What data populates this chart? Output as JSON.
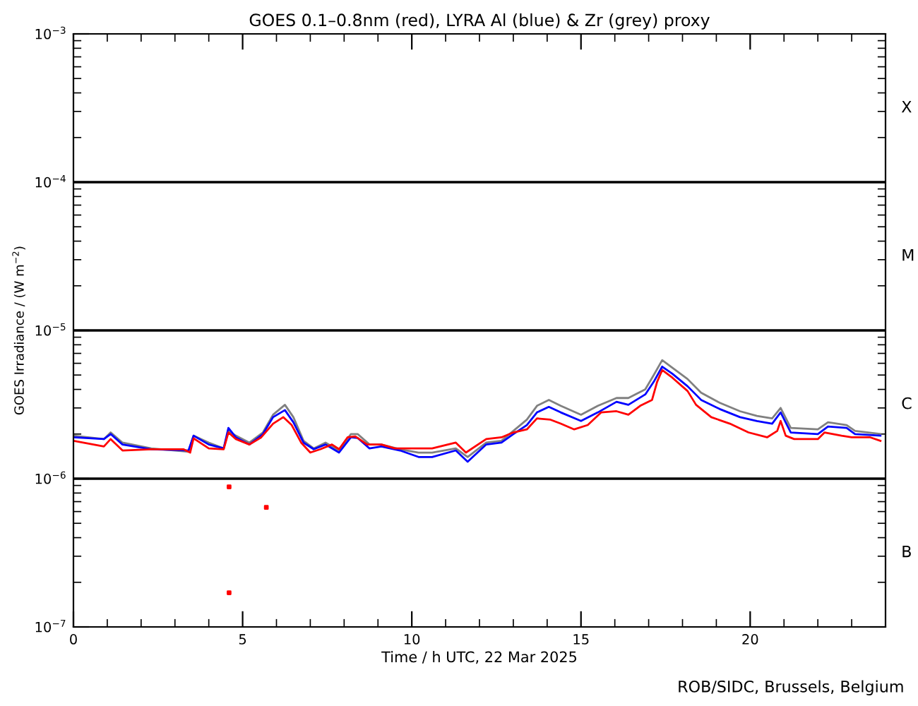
{
  "chart_data": {
    "type": "line",
    "title": "GOES 0.1–0.8nm (red), LYRA Al (blue) & Zr (grey) proxy",
    "xlabel": "Time / h UTC, 22 Mar 2025",
    "ylabel": "GOES Irradiance / (W m$^{−2}$)",
    "annotations": [
      "ROB/SIDC, Brussels, Belgium",
      "B",
      "C",
      "M",
      "X"
    ],
    "log": "y",
    "xlim": [
      0,
      24
    ],
    "xticks": [
      0,
      5,
      10,
      15,
      20
    ],
    "ylim": [
      1e-07,
      0.001
    ],
    "yticks": [
      {
        "value": 1e-07,
        "label": "10$^{−7}$"
      },
      {
        "value": 1e-06,
        "label": "10$^{−6}$"
      },
      {
        "value": 1e-05,
        "label": "10$^{−5}$"
      },
      {
        "value": 0.0001,
        "label": "10$^{−4}$"
      },
      {
        "value": 0.001,
        "label": "10$^{−3}$"
      }
    ],
    "ref_lines": [
      {
        "axis": "y",
        "value": 1e-06,
        "color": "#000000"
      },
      {
        "axis": "y",
        "value": 1e-05,
        "color": "#000000"
      },
      {
        "axis": "y",
        "value": 0.0001,
        "color": "#000000"
      }
    ],
    "grid": false,
    "legend": false,
    "series": [
      {
        "color": "#808080",
        "x": [
          0,
          0.9,
          1.1,
          1.45,
          2.3,
          3.4,
          3.55,
          4.0,
          4.44,
          4.58,
          4.8,
          5.2,
          5.6,
          5.9,
          6.25,
          6.5,
          6.8,
          7.1,
          7.45,
          7.85,
          8.2,
          8.4,
          8.75,
          9.1,
          9.65,
          10.2,
          10.6,
          11.3,
          11.65,
          12.2,
          12.65,
          13.0,
          13.4,
          13.7,
          14.05,
          14.4,
          15.0,
          15.5,
          16.05,
          16.4,
          16.9,
          17.15,
          17.4,
          17.7,
          18.15,
          18.55,
          19.1,
          19.7,
          20.2,
          20.65,
          20.9,
          21.2,
          22.0,
          22.3,
          22.85,
          23.1,
          23.85
        ],
        "values": [
          1.95e-06,
          1.85e-06,
          2.05e-06,
          1.75e-06,
          1.6e-06,
          1.52e-06,
          1.95e-06,
          1.75e-06,
          1.6e-06,
          2.1e-06,
          1.95e-06,
          1.75e-06,
          2.05e-06,
          2.7e-06,
          3.15e-06,
          2.6e-06,
          1.8e-06,
          1.6e-06,
          1.75e-06,
          1.55e-06,
          2e-06,
          2e-06,
          1.7e-06,
          1.7e-06,
          1.58e-06,
          1.5e-06,
          1.5e-06,
          1.6e-06,
          1.4e-06,
          1.75e-06,
          1.8e-06,
          2.1e-06,
          2.5e-06,
          3.1e-06,
          3.4e-06,
          3.1e-06,
          2.7e-06,
          3.1e-06,
          3.5e-06,
          3.5e-06,
          4e-06,
          5e-06,
          6.3e-06,
          5.6e-06,
          4.7e-06,
          3.8e-06,
          3.25e-06,
          2.85e-06,
          2.65e-06,
          2.55e-06,
          3e-06,
          2.2e-06,
          2.15e-06,
          2.4e-06,
          2.3e-06,
          2.1e-06,
          2e-06
        ]
      },
      {
        "color": "#0000ff",
        "x": [
          0,
          0.9,
          1.1,
          1.45,
          2.3,
          3.4,
          3.55,
          4.0,
          4.44,
          4.58,
          4.8,
          5.2,
          5.6,
          5.9,
          6.25,
          6.5,
          6.8,
          7.1,
          7.45,
          7.85,
          8.2,
          8.4,
          8.75,
          9.1,
          9.65,
          10.2,
          10.6,
          11.3,
          11.65,
          12.2,
          12.65,
          13.0,
          13.4,
          13.7,
          14.05,
          14.4,
          15.0,
          15.5,
          16.05,
          16.4,
          16.9,
          17.15,
          17.4,
          17.7,
          18.15,
          18.55,
          19.1,
          19.7,
          20.2,
          20.65,
          20.9,
          21.2,
          22.0,
          22.3,
          22.85,
          23.1,
          23.85
        ],
        "values": [
          1.9e-06,
          1.85e-06,
          2e-06,
          1.7e-06,
          1.58e-06,
          1.55e-06,
          1.95e-06,
          1.7e-06,
          1.6e-06,
          2.2e-06,
          1.9e-06,
          1.7e-06,
          2e-06,
          2.6e-06,
          2.9e-06,
          2.4e-06,
          1.75e-06,
          1.58e-06,
          1.7e-06,
          1.5e-06,
          1.9e-06,
          1.88e-06,
          1.6e-06,
          1.65e-06,
          1.55e-06,
          1.4e-06,
          1.4e-06,
          1.55e-06,
          1.3e-06,
          1.7e-06,
          1.75e-06,
          2e-06,
          2.3e-06,
          2.8e-06,
          3.05e-06,
          2.8e-06,
          2.45e-06,
          2.8e-06,
          3.3e-06,
          3.15e-06,
          3.7e-06,
          4.5e-06,
          5.7e-06,
          5.1e-06,
          4.2e-06,
          3.4e-06,
          2.95e-06,
          2.6e-06,
          2.45e-06,
          2.35e-06,
          2.8e-06,
          2.05e-06,
          2e-06,
          2.25e-06,
          2.2e-06,
          2e-06,
          1.95e-06
        ]
      },
      {
        "color": "#ff0000",
        "x": [
          0,
          0.9,
          1.1,
          1.45,
          2.3,
          3.25,
          3.45,
          3.55,
          4.0,
          4.44,
          4.58,
          4.8,
          5.2,
          5.55,
          5.9,
          6.2,
          6.45,
          6.73,
          7.0,
          7.3,
          7.64,
          7.85,
          8.1,
          8.33,
          8.68,
          9.1,
          9.5,
          10.6,
          11.3,
          11.6,
          12.2,
          12.65,
          13.0,
          13.4,
          13.7,
          14.1,
          14.4,
          14.8,
          15.2,
          15.6,
          16.05,
          16.4,
          16.75,
          17.1,
          17.25,
          17.4,
          17.7,
          18.15,
          18.4,
          18.85,
          19.4,
          19.95,
          20.5,
          20.8,
          20.9,
          21.05,
          21.3,
          22.0,
          22.2,
          22.7,
          23.0,
          23.55,
          23.85
        ],
        "values": [
          1.8e-06,
          1.65e-06,
          1.85e-06,
          1.55e-06,
          1.58e-06,
          1.58e-06,
          1.5e-06,
          1.87e-06,
          1.6e-06,
          1.58e-06,
          2.05e-06,
          1.85e-06,
          1.7e-06,
          1.9e-06,
          2.35e-06,
          2.6e-06,
          2.3e-06,
          1.75e-06,
          1.5e-06,
          1.58e-06,
          1.7e-06,
          1.58e-06,
          1.9e-06,
          1.93e-06,
          1.7e-06,
          1.7e-06,
          1.6e-06,
          1.6e-06,
          1.75e-06,
          1.5e-06,
          1.85e-06,
          1.9e-06,
          2.05e-06,
          2.15e-06,
          2.55e-06,
          2.5e-06,
          2.35e-06,
          2.15e-06,
          2.3e-06,
          2.8e-06,
          2.85e-06,
          2.7e-06,
          3.1e-06,
          3.4e-06,
          4.5e-06,
          5.4e-06,
          4.8e-06,
          3.9e-06,
          3.15e-06,
          2.6e-06,
          2.35e-06,
          2.05e-06,
          1.9e-06,
          2.1e-06,
          2.45e-06,
          1.95e-06,
          1.85e-06,
          1.85e-06,
          2.05e-06,
          1.95e-06,
          1.9e-06,
          1.9e-06,
          1.8e-06
        ]
      },
      {
        "type": "scatter",
        "color": "#ff0000",
        "marker": "square",
        "x": [
          4.6,
          5.7,
          4.6
        ],
        "values": [
          8.8e-07,
          6.4e-07,
          1.7e-07
        ]
      }
    ]
  }
}
